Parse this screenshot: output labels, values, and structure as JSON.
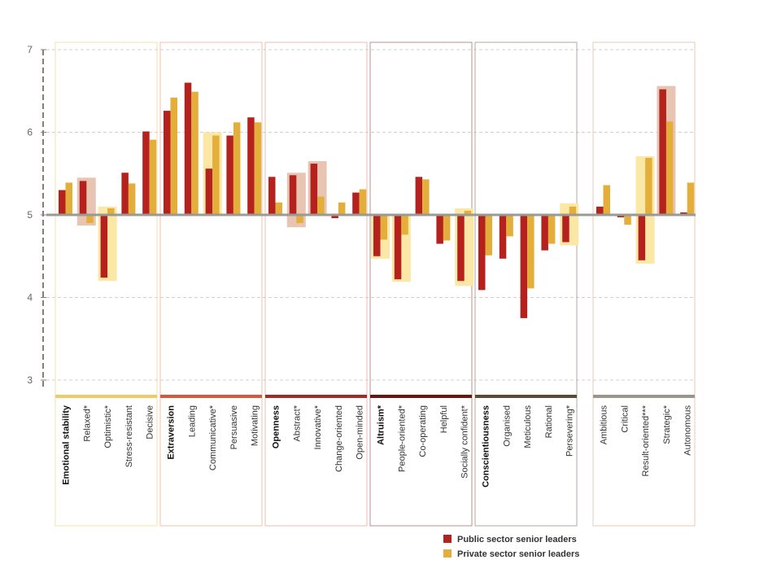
{
  "chart_data": {
    "type": "bar",
    "ylim": [
      2.9,
      7
    ],
    "yticks": [
      "3",
      "4",
      "5",
      "6",
      "7"
    ],
    "baseline": 5,
    "grid": true,
    "legend_position": "bottom-right",
    "colors": {
      "public": "#b5211d",
      "private": "#e3ae3a",
      "baseline": "#9a9a94",
      "grid": "#d0d0d0",
      "group_frame": "#e9c9b6",
      "group_frame_dark": "#b89088",
      "highlight_public": "#e8c4b2",
      "highlight_private": "#fbe7a6"
    },
    "series": [
      {
        "name": "Public sector senior leaders",
        "color": "#b5211d"
      },
      {
        "name": "Private sector senior leaders",
        "color": "#e3ae3a"
      }
    ],
    "groups": [
      {
        "color": "#f2c96a",
        "frame": "#f7dfa9",
        "items": [
          {
            "label": "Emotional stability",
            "bold": true,
            "public": 5.3,
            "private": 5.39
          },
          {
            "label": "Relaxed*",
            "bold": false,
            "public": 5.41,
            "private": 4.9,
            "highlight": {
              "color": "public",
              "top": 5.45,
              "bottom": 4.87
            }
          },
          {
            "label": "Optimistic*",
            "bold": false,
            "public": 4.24,
            "private": 5.08,
            "highlight": {
              "color": "private",
              "top": 5.1,
              "bottom": 4.2
            }
          },
          {
            "label": "Stress-resistant",
            "bold": false,
            "public": 5.51,
            "private": 5.38
          },
          {
            "label": "Decisive",
            "bold": false,
            "public": 6.01,
            "private": 5.91
          }
        ]
      },
      {
        "color": "#d9573a",
        "frame": "#ecc2b0",
        "items": [
          {
            "label": "Extraversion",
            "bold": true,
            "public": 6.26,
            "private": 6.42
          },
          {
            "label": "Leading",
            "bold": false,
            "public": 6.6,
            "private": 6.49
          },
          {
            "label": "Communicative*",
            "bold": false,
            "public": 5.56,
            "private": 5.96,
            "highlight": {
              "color": "private",
              "top": 6.0,
              "bottom": 5.0
            }
          },
          {
            "label": "Persuasive",
            "bold": false,
            "public": 5.96,
            "private": 6.12
          },
          {
            "label": "Motivating",
            "bold": false,
            "public": 6.18,
            "private": 6.12
          }
        ]
      },
      {
        "color": "#a52a24",
        "frame": "#e8c0b2",
        "items": [
          {
            "label": "Openness",
            "bold": true,
            "public": 5.46,
            "private": 5.15
          },
          {
            "label": "Abstract*",
            "bold": false,
            "public": 5.48,
            "private": 4.9,
            "highlight": {
              "color": "public",
              "top": 5.51,
              "bottom": 4.85
            }
          },
          {
            "label": "Innovative*",
            "bold": false,
            "public": 5.62,
            "private": 5.22,
            "highlight": {
              "color": "public",
              "top": 5.65,
              "bottom": 5.0
            }
          },
          {
            "label": "Change-oriented",
            "bold": false,
            "public": 4.96,
            "private": 5.15
          },
          {
            "label": "Open-minded",
            "bold": false,
            "public": 5.27,
            "private": 5.31
          }
        ]
      },
      {
        "color": "#6b1410",
        "frame": "#b89088",
        "items": [
          {
            "label": "Altruism*",
            "bold": true,
            "public": 4.5,
            "private": 4.7,
            "highlight": {
              "color": "private",
              "top": 5.0,
              "bottom": 4.47
            }
          },
          {
            "label": "People-oriented*",
            "bold": false,
            "public": 4.22,
            "private": 4.76,
            "highlight": {
              "color": "private",
              "top": 5.0,
              "bottom": 4.19
            }
          },
          {
            "label": "Co-operating",
            "bold": false,
            "public": 5.46,
            "private": 5.43
          },
          {
            "label": "Helpful",
            "bold": false,
            "public": 4.65,
            "private": 4.69
          },
          {
            "label": "Socially confident*",
            "bold": false,
            "public": 4.2,
            "private": 5.05,
            "highlight": {
              "color": "private",
              "top": 5.08,
              "bottom": 4.14
            }
          }
        ]
      },
      {
        "color": "#5a4a3a",
        "frame": "#b5a89c",
        "items": [
          {
            "label": "Conscientiousness",
            "bold": true,
            "public": 4.09,
            "private": 4.51
          },
          {
            "label": "Organised",
            "bold": false,
            "public": 4.47,
            "private": 4.74
          },
          {
            "label": "Meticulous",
            "bold": false,
            "public": 3.75,
            "private": 4.11
          },
          {
            "label": "Rational",
            "bold": false,
            "public": 4.57,
            "private": 4.65
          },
          {
            "label": "Persevering*",
            "bold": false,
            "public": 4.67,
            "private": 5.1,
            "highlight": {
              "color": "private",
              "top": 5.14,
              "bottom": 4.63
            }
          }
        ]
      },
      {
        "color": "#9a968e",
        "frame": "#e9c9b6",
        "items": [
          {
            "label": "Ambitious",
            "bold": false,
            "public": 5.1,
            "private": 5.36
          },
          {
            "label": "Critical",
            "bold": false,
            "public": 4.97,
            "private": 4.88
          },
          {
            "label": "Result-oriented***",
            "bold": false,
            "public": 4.45,
            "private": 5.69,
            "highlight": {
              "color": "private",
              "top": 5.71,
              "bottom": 4.41
            }
          },
          {
            "label": "Strategic*",
            "bold": false,
            "public": 6.52,
            "private": 6.13,
            "highlight": {
              "color": "public",
              "top": 6.56,
              "bottom": 5.0
            }
          },
          {
            "label": "Autonomous",
            "bold": false,
            "public": 5.03,
            "private": 5.39
          }
        ]
      }
    ]
  }
}
